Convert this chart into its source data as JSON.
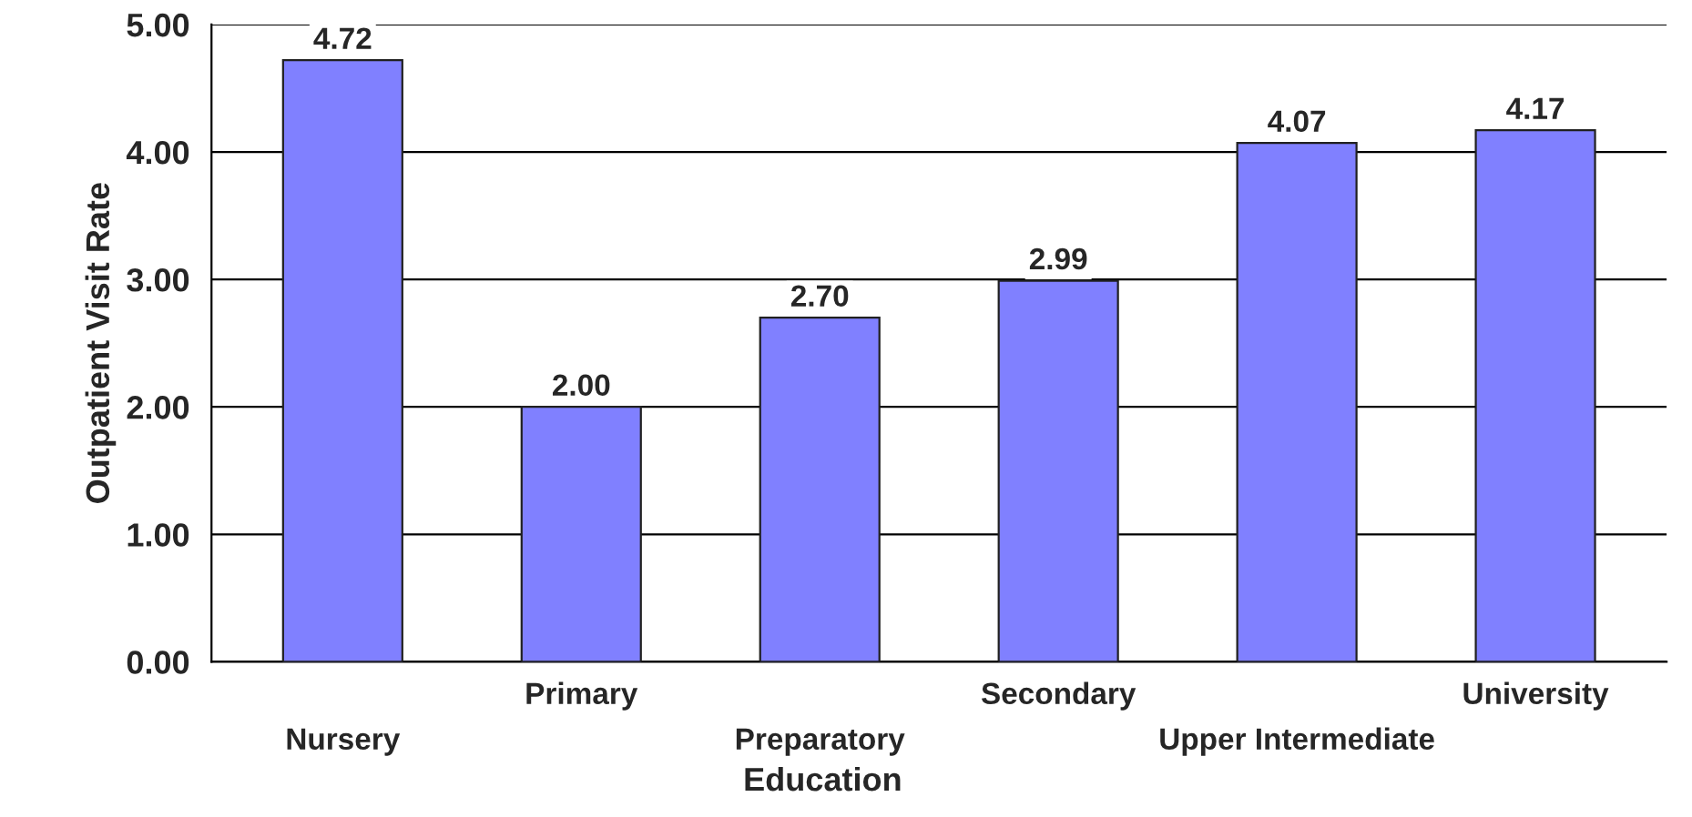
{
  "chart_data": {
    "type": "bar",
    "xlabel": "Education",
    "ylabel": "Outpatient Visit Rate",
    "categories": [
      "Nursery",
      "Primary",
      "Preparatory",
      "Secondary",
      "Upper Intermediate",
      "University"
    ],
    "values": [
      4.72,
      2.0,
      2.7,
      2.99,
      4.07,
      4.17
    ],
    "value_labels": [
      "4.72",
      "2.00",
      "2.70",
      "2.99",
      "4.07",
      "4.17"
    ],
    "color": "#8080ff",
    "ylim": [
      0,
      5
    ],
    "yticks": [
      {
        "value": 0,
        "label": "0.00"
      },
      {
        "value": 1,
        "label": "1.00"
      },
      {
        "value": 2,
        "label": "2.00"
      },
      {
        "value": 3,
        "label": "3.00"
      },
      {
        "value": 4,
        "label": "4.00"
      },
      {
        "value": 5,
        "label": "5.00"
      }
    ],
    "grid": "y",
    "legend": false
  }
}
